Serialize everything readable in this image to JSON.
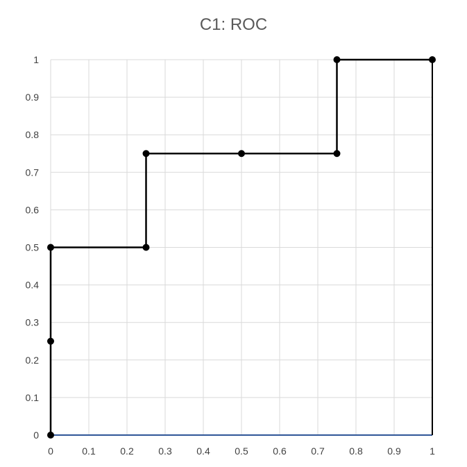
{
  "chart_data": {
    "type": "line",
    "title": "C1: ROC",
    "xlabel": "",
    "ylabel": "",
    "xlim": [
      0,
      1
    ],
    "ylim": [
      0,
      1
    ],
    "x_ticks": [
      "0",
      "0.1",
      "0.2",
      "0.3",
      "0.4",
      "0.5",
      "0.6",
      "0.7",
      "0.8",
      "0.9",
      "1"
    ],
    "y_ticks": [
      "0",
      "0.1",
      "0.2",
      "0.3",
      "0.4",
      "0.5",
      "0.6",
      "0.7",
      "0.8",
      "0.9",
      "1"
    ],
    "grid": true,
    "legend": "none",
    "series": [
      {
        "color": "#000000",
        "marker": "circle",
        "points": [
          {
            "x": 0,
            "y": 0
          },
          {
            "x": 0,
            "y": 0.25
          },
          {
            "x": 0,
            "y": 0.5
          },
          {
            "x": 0.25,
            "y": 0.5
          },
          {
            "x": 0.25,
            "y": 0.75
          },
          {
            "x": 0.5,
            "y": 0.75
          },
          {
            "x": 0.75,
            "y": 0.75
          },
          {
            "x": 0.75,
            "y": 1
          },
          {
            "x": 1,
            "y": 1
          }
        ]
      },
      {
        "color": "#2F5597",
        "marker": "none",
        "points": [
          {
            "x": 0,
            "y": 0
          },
          {
            "x": 1,
            "y": 0
          }
        ]
      },
      {
        "color": "#000000",
        "marker": "none",
        "points": [
          {
            "x": 1,
            "y": 0
          },
          {
            "x": 1,
            "y": 1
          }
        ]
      }
    ],
    "colors": {
      "grid": "#D9D9D9",
      "axis_line": "#2F5597",
      "title": "#595959",
      "tick_text": "#404040"
    }
  }
}
